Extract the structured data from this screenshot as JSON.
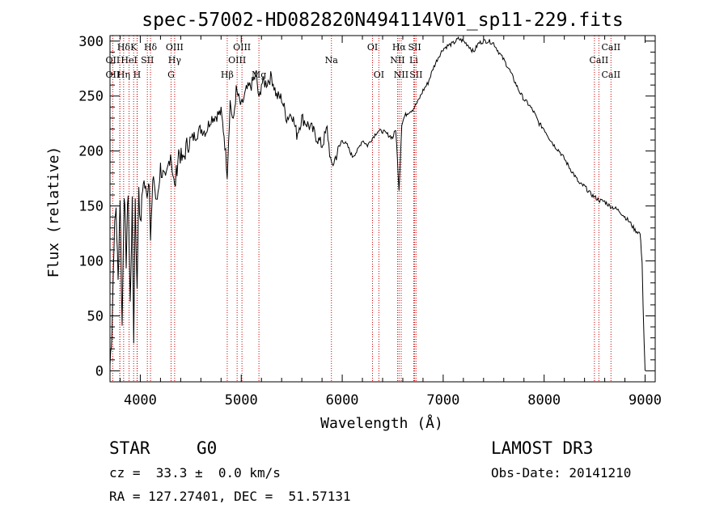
{
  "chart_data": {
    "type": "line",
    "title": "spec-57002-HD082820N494114V01_sp11-229.fits",
    "xlabel": "Wavelength (Å)",
    "ylabel": "Flux (relative)",
    "xlim": [
      3700,
      9100
    ],
    "ylim": [
      -10,
      305
    ],
    "x_ticks": [
      4000,
      5000,
      6000,
      7000,
      8000,
      9000
    ],
    "y_ticks": [
      0,
      50,
      100,
      150,
      200,
      250,
      300
    ],
    "series": [
      {
        "name": "flux",
        "x": [
          3700,
          3720,
          3740,
          3760,
          3780,
          3800,
          3820,
          3840,
          3860,
          3880,
          3900,
          3920,
          3935,
          3950,
          3968,
          3985,
          4000,
          4030,
          4060,
          4090,
          4101,
          4130,
          4160,
          4200,
          4250,
          4300,
          4340,
          4380,
          4420,
          4460,
          4500,
          4550,
          4600,
          4650,
          4700,
          4750,
          4800,
          4830,
          4861,
          4890,
          4920,
          4950,
          5000,
          5050,
          5100,
          5150,
          5175,
          5200,
          5250,
          5300,
          5350,
          5400,
          5450,
          5500,
          5550,
          5600,
          5650,
          5700,
          5750,
          5800,
          5850,
          5893,
          5950,
          6000,
          6050,
          6100,
          6150,
          6200,
          6250,
          6300,
          6350,
          6400,
          6450,
          6500,
          6530,
          6563,
          6590,
          6620,
          6650,
          6700,
          6750,
          6800,
          6850,
          6900,
          6950,
          7000,
          7050,
          7100,
          7150,
          7200,
          7250,
          7300,
          7350,
          7400,
          7450,
          7500,
          7550,
          7600,
          7650,
          7700,
          7750,
          7800,
          7850,
          7900,
          7950,
          8000,
          8050,
          8100,
          8150,
          8200,
          8250,
          8300,
          8350,
          8400,
          8450,
          8500,
          8550,
          8600,
          8650,
          8700,
          8750,
          8800,
          8850,
          8900,
          8950,
          8970,
          8980,
          8990,
          9000
        ],
        "values": [
          5,
          40,
          120,
          150,
          80,
          160,
          40,
          165,
          100,
          165,
          60,
          150,
          30,
          160,
          70,
          170,
          130,
          175,
          160,
          175,
          120,
          180,
          150,
          185,
          170,
          200,
          165,
          200,
          190,
          205,
          210,
          215,
          220,
          218,
          230,
          232,
          235,
          215,
          180,
          245,
          225,
          255,
          240,
          255,
          260,
          270,
          245,
          262,
          262,
          268,
          250,
          248,
          230,
          235,
          215,
          230,
          225,
          220,
          212,
          205,
          220,
          185,
          198,
          210,
          205,
          195,
          200,
          210,
          205,
          212,
          218,
          218,
          215,
          212,
          220,
          165,
          225,
          232,
          235,
          238,
          245,
          255,
          262,
          275,
          285,
          293,
          296,
          298,
          302,
          300,
          296,
          290,
          298,
          300,
          300,
          298,
          290,
          283,
          275,
          265,
          255,
          247,
          242,
          235,
          225,
          220,
          212,
          205,
          200,
          193,
          185,
          178,
          170,
          168,
          162,
          158,
          155,
          154,
          150,
          148,
          145,
          140,
          135,
          128,
          125,
          100,
          60,
          25,
          0
        ]
      }
    ],
    "line_color": "#000000",
    "marker_color": "#cc0000",
    "line_markers": [
      {
        "label": "Hδ",
        "x": 3835,
        "row": 0
      },
      {
        "label": "K",
        "x": 3934,
        "row": 0
      },
      {
        "label": "Hδ",
        "x": 4101,
        "row": 0
      },
      {
        "label": "OIII",
        "x": 4340,
        "row": 0
      },
      {
        "label": "OIII",
        "x": 5007,
        "row": 0
      },
      {
        "label": "OI",
        "x": 6300,
        "row": 0
      },
      {
        "label": "Hα",
        "x": 6563,
        "row": 0
      },
      {
        "label": "SII",
        "x": 6717,
        "row": 0
      },
      {
        "label": "CaII",
        "x": 8662,
        "row": 0
      },
      {
        "label": "OII",
        "x": 3727,
        "row": 1
      },
      {
        "label": "HeI",
        "x": 3889,
        "row": 1
      },
      {
        "label": "SII",
        "x": 4070,
        "row": 1
      },
      {
        "label": "Hγ",
        "x": 4340,
        "row": 1
      },
      {
        "label": "OIII",
        "x": 4959,
        "row": 1
      },
      {
        "label": "Na",
        "x": 5893,
        "row": 1
      },
      {
        "label": "NII",
        "x": 6548,
        "row": 1
      },
      {
        "label": "Li",
        "x": 6708,
        "row": 1
      },
      {
        "label": "CaII",
        "x": 8542,
        "row": 1
      },
      {
        "label": "OII",
        "x": 3727,
        "row": 2
      },
      {
        "label": "Hη",
        "x": 3835,
        "row": 2
      },
      {
        "label": "H",
        "x": 3968,
        "row": 2
      },
      {
        "label": "G",
        "x": 4305,
        "row": 2
      },
      {
        "label": "Hβ",
        "x": 4861,
        "row": 2
      },
      {
        "label": "Mg",
        "x": 5175,
        "row": 2
      },
      {
        "label": "OI",
        "x": 6363,
        "row": 2
      },
      {
        "label": "NII",
        "x": 6584,
        "row": 2
      },
      {
        "label": "SII",
        "x": 6731,
        "row": 2
      },
      {
        "label": "CaII",
        "x": 8662,
        "row": 2
      }
    ],
    "extra_marker_lines": [
      3797,
      3798,
      3970,
      4861,
      6548,
      6584,
      8498
    ]
  },
  "info": {
    "object_class": "STAR",
    "subclass": "G0",
    "survey": "LAMOST DR3",
    "redshift": "cz =  33.3 ±  0.0 km/s",
    "obs_date": "Obs-Date: 20141210",
    "coords": "RA = 127.27401, DEC =  51.57131"
  }
}
